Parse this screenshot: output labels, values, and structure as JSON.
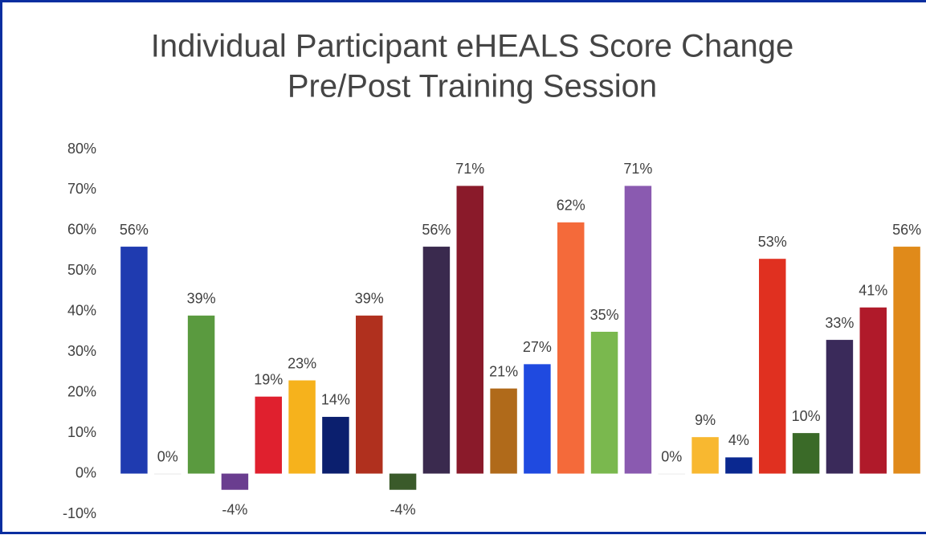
{
  "chart_data": {
    "type": "bar",
    "title": [
      "Individual Participant eHEALS Score Change",
      "Pre/Post Training Session"
    ],
    "categories": [
      null,
      null,
      null,
      null,
      null,
      null,
      null,
      null,
      null,
      null,
      null,
      null,
      null,
      null,
      null,
      null,
      null,
      null,
      null,
      null,
      null,
      null,
      null,
      null
    ],
    "values": [
      56,
      0,
      39,
      -4,
      19,
      23,
      14,
      39,
      -4,
      56,
      71,
      21,
      27,
      62,
      35,
      71,
      0,
      9,
      4,
      53,
      10,
      33,
      41,
      56
    ],
    "value_labels": [
      "56%",
      "0%",
      "39%",
      "-4%",
      "19%",
      "23%",
      "14%",
      "39%",
      "-4%",
      "56%",
      "71%",
      "21%",
      "27%",
      "62%",
      "35%",
      "71%",
      "0%",
      "9%",
      "4%",
      "53%",
      "10%",
      "33%",
      "41%",
      "56%"
    ],
    "colors": [
      "#1f3bb0",
      "#e6e6e6",
      "#5a9a3f",
      "#6a3d8f",
      "#e0202e",
      "#f6b21c",
      "#0b1f6e",
      "#b0301e",
      "#3a5a2a",
      "#3a2a4e",
      "#8a1a2a",
      "#b06a1a",
      "#1f4ae0",
      "#f46a3a",
      "#7ab84e",
      "#8a5ab0",
      "#ececec",
      "#f8b830",
      "#0a2890",
      "#e03020",
      "#3a6a28",
      "#3a2a5a",
      "#b01a2a",
      "#e08a1a"
    ],
    "ylim": [
      -10,
      80
    ],
    "yticks": [
      {
        "value": -10,
        "label": "-10%"
      },
      {
        "value": 0,
        "label": "0%"
      },
      {
        "value": 10,
        "label": "10%"
      },
      {
        "value": 20,
        "label": "20%"
      },
      {
        "value": 30,
        "label": "30%"
      },
      {
        "value": 40,
        "label": "40%"
      },
      {
        "value": 50,
        "label": "50%"
      },
      {
        "value": 60,
        "label": "60%"
      },
      {
        "value": 70,
        "label": "70%"
      },
      {
        "value": 80,
        "label": "80%"
      }
    ],
    "grid": false
  }
}
